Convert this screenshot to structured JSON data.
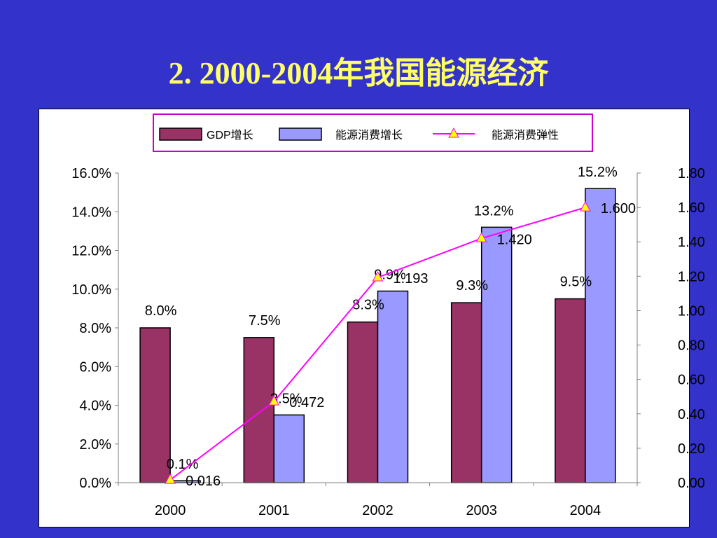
{
  "slide": {
    "title": "2. 2000-2004年我国能源经济"
  },
  "chart_data": {
    "type": "bar",
    "categories": [
      "2000",
      "2001",
      "2002",
      "2003",
      "2004"
    ],
    "series": [
      {
        "name": "GDP增长",
        "type": "bar",
        "axis": "left",
        "color": "#993366",
        "values": [
          8.0,
          7.5,
          8.3,
          9.3,
          9.5
        ],
        "labels": [
          "8.0%",
          "7.5%",
          "8.3%",
          "9.3%",
          "9.5%"
        ]
      },
      {
        "name": "能源消费增长",
        "type": "bar",
        "axis": "left",
        "color": "#9999ff",
        "values": [
          0.1,
          3.5,
          9.9,
          13.2,
          15.2
        ],
        "labels": [
          "0.1%",
          "3.5%",
          "9.9%",
          "13.2%",
          "15.2%"
        ]
      },
      {
        "name": "能源消费弹性",
        "type": "line",
        "axis": "right",
        "color": "#ff00ff",
        "marker_color": "#ffff00",
        "values": [
          0.016,
          0.472,
          1.193,
          1.42,
          1.6
        ],
        "labels": [
          "0.016",
          "0.472",
          "1.193",
          "1.420",
          "1.600"
        ]
      }
    ],
    "y_left": {
      "min": 0,
      "max": 16,
      "ticks": [
        "0.0%",
        "2.0%",
        "4.0%",
        "6.0%",
        "8.0%",
        "10.0%",
        "12.0%",
        "14.0%",
        "16.0%"
      ]
    },
    "y_right": {
      "min": 0,
      "max": 1.8,
      "ticks": [
        "0.00",
        "0.20",
        "0.40",
        "0.60",
        "0.80",
        "1.00",
        "1.20",
        "1.40",
        "1.60",
        "1.80"
      ]
    },
    "legend_position": "top-center",
    "grid": false,
    "legend_border_color": "#cc00cc"
  }
}
